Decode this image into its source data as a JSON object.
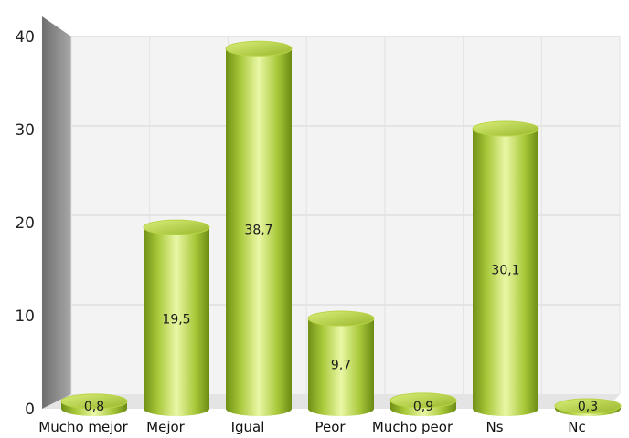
{
  "chart_data": {
    "type": "bar",
    "title": "",
    "xlabel": "",
    "ylabel": "",
    "categories": [
      "Mucho mejor",
      "Mejor",
      "Igual",
      "Peor",
      "Mucho peor",
      "Ns",
      "Nc"
    ],
    "values": [
      0.8,
      19.5,
      38.7,
      9.7,
      0.9,
      30.1,
      0.3
    ],
    "value_labels": [
      "0,8",
      "19,5",
      "38,7",
      "9,7",
      "0,9",
      "30,1",
      "0,3"
    ],
    "yticks": [
      "0",
      "10",
      "20",
      "30",
      "40"
    ],
    "ylim": [
      0,
      40
    ],
    "grid": true,
    "legend": "none",
    "style": "3d-cylinder",
    "colors": {
      "bar_light": "#e6f59a",
      "bar_mid": "#a8c83a",
      "bar_dark": "#6a8a14",
      "bar_top": "#c9e05a",
      "wall": "#f2f2f2",
      "gridline": "#d6d6d6",
      "side_wall": "#8a8a8a"
    }
  }
}
